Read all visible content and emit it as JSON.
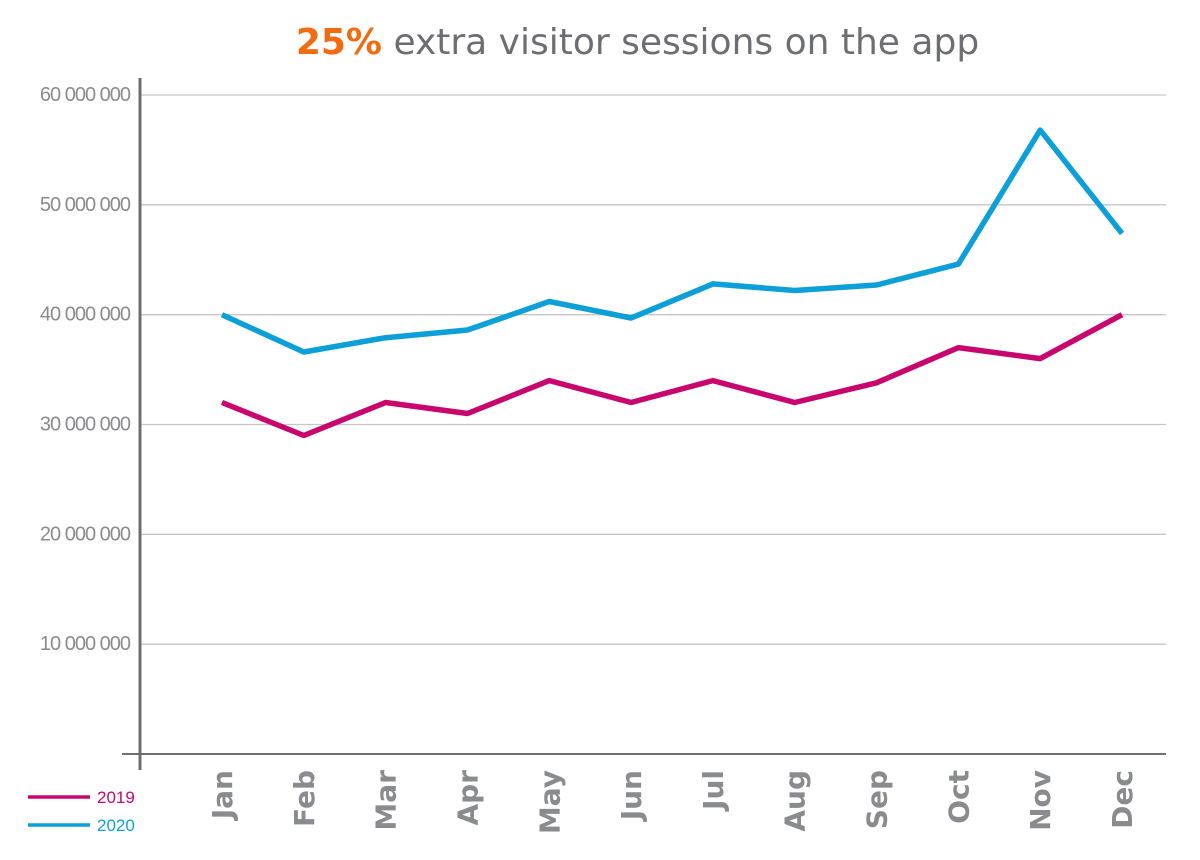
{
  "title": {
    "highlight": "25%",
    "text": " extra visitor sessions on the app",
    "highlight_color": "#f26b10"
  },
  "chart_data": {
    "type": "line",
    "title": "25% extra visitor sessions on the app",
    "categories": [
      "Jan",
      "Feb",
      "Mar",
      "Apr",
      "May",
      "Jun",
      "Jul",
      "Aug",
      "Sep",
      "Oct",
      "Nov",
      "Dec"
    ],
    "series": [
      {
        "name": "2019",
        "color": "#c8076e",
        "values": [
          32000000,
          29000000,
          32000000,
          31000000,
          34000000,
          32000000,
          34000000,
          32000000,
          33800000,
          37000000,
          36000000,
          40000000
        ]
      },
      {
        "name": "2020",
        "color": "#0c9fd8",
        "values": [
          40000000,
          36600000,
          37900000,
          38600000,
          41200000,
          39700000,
          42800000,
          42200000,
          42700000,
          44600000,
          56800000,
          47400000
        ]
      }
    ],
    "ylim": [
      0,
      60000000
    ],
    "yticks": [
      10000000,
      20000000,
      30000000,
      40000000,
      50000000,
      60000000
    ],
    "ytick_labels": [
      "10 000 000",
      "20 000 000",
      "30 000 000",
      "40 000 000",
      "50 000 000",
      "60 000 000"
    ],
    "xlabel": "",
    "ylabel": "",
    "grid": true,
    "legend_position": "bottom-left",
    "colors": {
      "axis": "#6d6e71",
      "grid": "#c6c6c6",
      "tick_text": "#8a8b8e"
    }
  }
}
